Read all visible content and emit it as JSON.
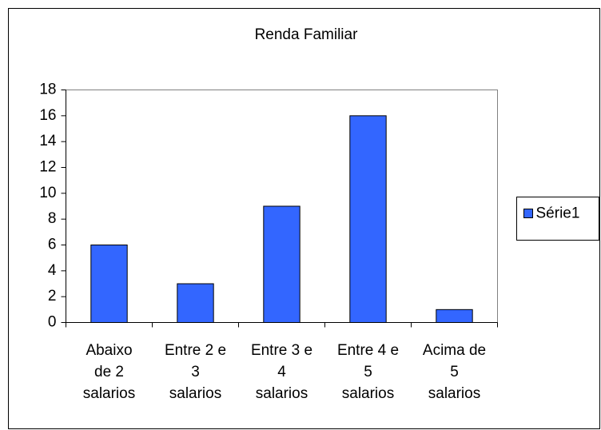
{
  "chart_data": {
    "type": "bar",
    "title": "Renda Familiar",
    "categories": [
      "Abaixo de 2 salarios",
      "Entre 2 e 3 salarios",
      "Entre 3 e 4 salarios",
      "Entre 4 e 5 salarios",
      "Acima de 5 salarios"
    ],
    "series": [
      {
        "name": "Série1",
        "color": "#3366ff",
        "values": [
          6,
          3,
          9,
          16,
          1
        ]
      }
    ],
    "ylim": [
      0,
      18
    ],
    "yticks": [
      0,
      2,
      4,
      6,
      8,
      10,
      12,
      14,
      16,
      18
    ],
    "grid": false,
    "legend": "right"
  }
}
